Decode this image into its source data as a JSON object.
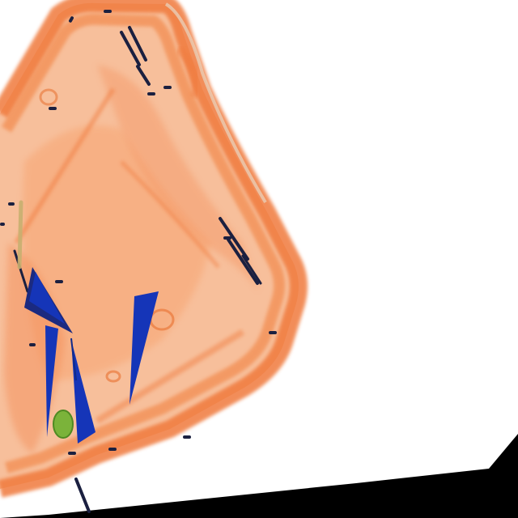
{
  "scene": {
    "kind": "x-ray baggage scan",
    "object": "hard-shell case",
    "colors": {
      "border": "#000000",
      "background": "#ffffff",
      "organic_material": "#f07a3c",
      "organic_light": "#f6b48a",
      "dense_metal": "#1535b8",
      "dark_metal": "#1b2040",
      "mixed_material": "#7bb33a",
      "thin_metal": "#c8b070"
    },
    "visible_items": [
      "case-shell",
      "case-hinges",
      "screws",
      "blade-shapes",
      "round-green-object"
    ]
  }
}
